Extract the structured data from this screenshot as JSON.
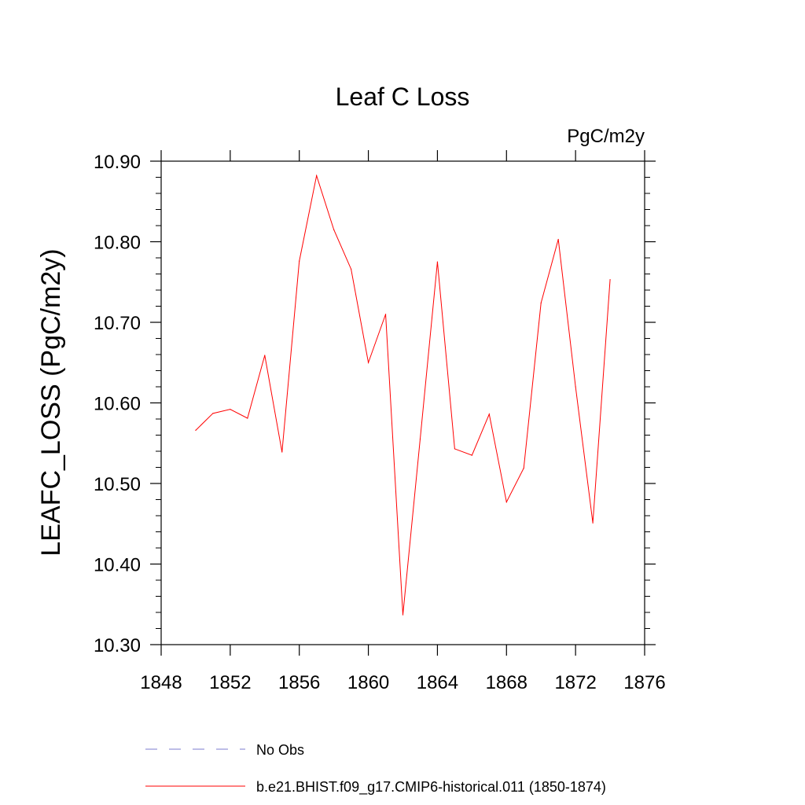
{
  "chart_data": {
    "type": "line",
    "title": "Leaf C Loss",
    "units": "PgC/m2y",
    "ylabel": "LEAFC_LOSS  (PgC/m2y)",
    "xlabel": "",
    "xlim": [
      1848,
      1876
    ],
    "ylim": [
      10.3,
      10.9
    ],
    "x_ticks": [
      1848,
      1852,
      1856,
      1860,
      1864,
      1868,
      1872,
      1876
    ],
    "x_tick_labels": [
      "1848",
      "1852",
      "1856",
      "1860",
      "1864",
      "1868",
      "1872",
      "1876"
    ],
    "y_ticks": [
      10.3,
      10.4,
      10.5,
      10.6,
      10.7,
      10.8,
      10.9
    ],
    "y_tick_labels": [
      "10.30",
      "10.40",
      "10.50",
      "10.60",
      "10.70",
      "10.80",
      "10.90"
    ],
    "grid": false,
    "legend_position": "bottom",
    "series": [
      {
        "name": "b.e21.BHIST.f09_g17.CMIP6-historical.011 (1850-1874)",
        "color": "#ff0000",
        "style": "solid",
        "x": [
          1850,
          1851,
          1852,
          1853,
          1854,
          1855,
          1856,
          1857,
          1858,
          1859,
          1860,
          1861,
          1862,
          1863,
          1864,
          1865,
          1866,
          1867,
          1868,
          1869,
          1870,
          1871,
          1872,
          1873,
          1874
        ],
        "values": [
          10.566,
          10.587,
          10.592,
          10.581,
          10.659,
          10.539,
          10.776,
          10.882,
          10.815,
          10.766,
          10.65,
          10.71,
          10.337,
          10.555,
          10.775,
          10.543,
          10.535,
          10.586,
          10.477,
          10.519,
          10.724,
          10.803,
          10.62,
          10.451,
          10.753
        ]
      }
    ],
    "legend": [
      {
        "label": "No Obs",
        "color": "#7b7bcf",
        "style": "dashed"
      },
      {
        "label": "b.e21.BHIST.f09_g17.CMIP6-historical.011 (1850-1874)",
        "color": "#ff0000",
        "style": "solid"
      }
    ]
  }
}
